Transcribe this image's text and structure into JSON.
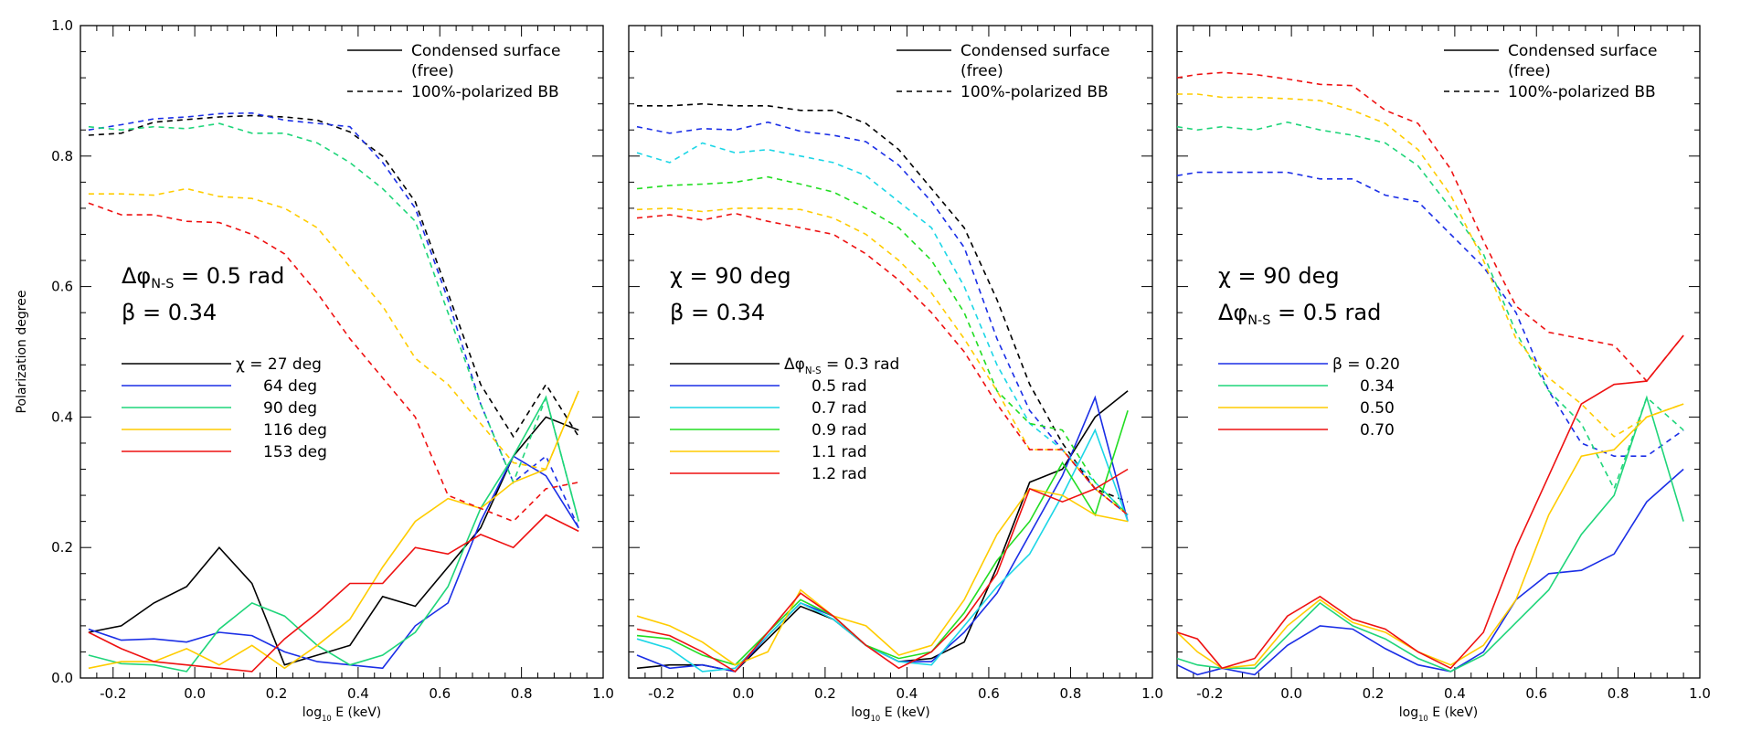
{
  "chart_data": [
    {
      "type": "line",
      "ylabel": "Polarization degree",
      "xlabel_base": "log",
      "xlabel_sub": "10",
      "xlabel_rest": "E (keV)",
      "xlim": [
        -0.28,
        1.0
      ],
      "ylim": [
        0.0,
        1.0
      ],
      "xticks": [
        "-0.2",
        "0.0",
        "0.2",
        "0.4",
        "0.6",
        "0.8",
        "1.0"
      ],
      "yticks": [
        "0.0",
        "0.2",
        "0.4",
        "0.6",
        "0.8",
        "1.0"
      ],
      "style_legend": {
        "solid": "Condensed surface",
        "solid_line2": "(free)",
        "dashed": "100%-polarized BB"
      },
      "params": [
        {
          "sym": "Δφ",
          "sub": "N-S",
          "rest": "=  0.5 rad"
        },
        {
          "sym": "β",
          "sub": "",
          "rest": "=  0.34"
        }
      ],
      "legend_title_sym": "χ",
      "legend_title_sub": "",
      "legend_title_rest": "=",
      "x": [
        -0.26,
        -0.18,
        -0.1,
        -0.02,
        0.06,
        0.14,
        0.22,
        0.3,
        0.38,
        0.46,
        0.54,
        0.62,
        0.7,
        0.78,
        0.86,
        0.94
      ],
      "series": [
        {
          "label": "27 deg",
          "color": "#000000",
          "solid": [
            0.07,
            0.08,
            0.115,
            0.14,
            0.2,
            0.145,
            0.02,
            0.035,
            0.05,
            0.125,
            0.11,
            0.17,
            0.23,
            0.34,
            0.4,
            0.38
          ],
          "dashed": [
            0.832,
            0.835,
            0.852,
            0.856,
            0.86,
            0.862,
            0.86,
            0.855,
            0.837,
            0.8,
            0.73,
            0.59,
            0.45,
            0.37,
            0.45,
            0.37
          ]
        },
        {
          "label": "64 deg",
          "color": "#1a2ee6",
          "solid": [
            0.075,
            0.058,
            0.06,
            0.055,
            0.07,
            0.065,
            0.04,
            0.025,
            0.02,
            0.015,
            0.08,
            0.115,
            0.24,
            0.34,
            0.31,
            0.23
          ],
          "dashed": [
            0.84,
            0.848,
            0.857,
            0.86,
            0.865,
            0.866,
            0.855,
            0.85,
            0.845,
            0.79,
            0.72,
            0.58,
            0.42,
            0.3,
            0.34,
            0.23
          ]
        },
        {
          "label": "90 deg",
          "color": "#1fd57a",
          "solid": [
            0.035,
            0.022,
            0.02,
            0.01,
            0.075,
            0.115,
            0.095,
            0.05,
            0.02,
            0.035,
            0.07,
            0.14,
            0.26,
            0.34,
            0.43,
            0.24
          ],
          "dashed": [
            0.845,
            0.84,
            0.845,
            0.842,
            0.85,
            0.835,
            0.835,
            0.82,
            0.79,
            0.75,
            0.7,
            0.56,
            0.42,
            0.3,
            0.43,
            0.24
          ]
        },
        {
          "label": "116 deg",
          "color": "#ffcc00",
          "solid": [
            0.015,
            0.025,
            0.025,
            0.045,
            0.02,
            0.05,
            0.015,
            0.05,
            0.09,
            0.17,
            0.24,
            0.275,
            0.26,
            0.3,
            0.32,
            0.44
          ],
          "dashed": [
            0.742,
            0.742,
            0.74,
            0.75,
            0.738,
            0.735,
            0.72,
            0.69,
            0.63,
            0.57,
            0.49,
            0.45,
            0.39,
            0.33,
            0.32,
            0.44
          ]
        },
        {
          "label": "153 deg",
          "color": "#ee1111",
          "solid": [
            0.07,
            0.045,
            0.025,
            0.02,
            0.015,
            0.01,
            0.06,
            0.1,
            0.145,
            0.145,
            0.2,
            0.19,
            0.22,
            0.2,
            0.25,
            0.225
          ],
          "dashed": [
            0.728,
            0.71,
            0.71,
            0.7,
            0.698,
            0.68,
            0.65,
            0.59,
            0.52,
            0.46,
            0.4,
            0.28,
            0.26,
            0.24,
            0.29,
            0.3
          ]
        }
      ]
    },
    {
      "type": "line",
      "ylabel": "",
      "xlabel_base": "log",
      "xlabel_sub": "10",
      "xlabel_rest": "E (keV)",
      "xlim": [
        -0.28,
        1.0
      ],
      "ylim": [
        0.0,
        1.0
      ],
      "xticks": [
        "-0.2",
        "0.0",
        "0.2",
        "0.4",
        "0.6",
        "0.8",
        "1.0"
      ],
      "yticks": [],
      "style_legend": {
        "solid": "Condensed surface",
        "solid_line2": "(free)",
        "dashed": "100%-polarized BB"
      },
      "params": [
        {
          "sym": "χ",
          "sub": "",
          "rest": "=    90 deg"
        },
        {
          "sym": "β",
          "sub": "",
          "rest": "=  0.34"
        }
      ],
      "legend_title_sym": "Δφ",
      "legend_title_sub": "N-S",
      "legend_title_rest": "=",
      "x": [
        -0.26,
        -0.18,
        -0.1,
        -0.02,
        0.06,
        0.14,
        0.22,
        0.3,
        0.38,
        0.46,
        0.54,
        0.62,
        0.7,
        0.78,
        0.86,
        0.94
      ],
      "series": [
        {
          "label": "0.3 rad",
          "color": "#000000",
          "solid": [
            0.015,
            0.02,
            0.02,
            0.01,
            0.06,
            0.11,
            0.09,
            0.05,
            0.025,
            0.03,
            0.055,
            0.17,
            0.3,
            0.32,
            0.4,
            0.44
          ],
          "dashed": [
            0.877,
            0.877,
            0.88,
            0.877,
            0.877,
            0.87,
            0.87,
            0.85,
            0.81,
            0.75,
            0.69,
            0.58,
            0.45,
            0.36,
            0.29,
            0.27
          ]
        },
        {
          "label": "0.5 rad",
          "color": "#1a2ee6",
          "solid": [
            0.035,
            0.015,
            0.02,
            0.01,
            0.065,
            0.115,
            0.095,
            0.05,
            0.025,
            0.025,
            0.07,
            0.13,
            0.22,
            0.31,
            0.43,
            0.24
          ],
          "dashed": [
            0.845,
            0.835,
            0.842,
            0.84,
            0.852,
            0.838,
            0.832,
            0.822,
            0.786,
            0.73,
            0.66,
            0.52,
            0.41,
            0.35,
            0.29,
            0.25
          ]
        },
        {
          "label": "0.7 rad",
          "color": "#1cd6e6",
          "solid": [
            0.06,
            0.045,
            0.01,
            0.015,
            0.065,
            0.115,
            0.09,
            0.05,
            0.025,
            0.02,
            0.08,
            0.14,
            0.19,
            0.28,
            0.38,
            0.24
          ],
          "dashed": [
            0.805,
            0.79,
            0.82,
            0.805,
            0.81,
            0.8,
            0.79,
            0.77,
            0.73,
            0.69,
            0.6,
            0.48,
            0.39,
            0.35,
            0.3,
            0.25
          ]
        },
        {
          "label": "0.9 rad",
          "color": "#22dd22",
          "solid": [
            0.065,
            0.06,
            0.035,
            0.02,
            0.07,
            0.12,
            0.095,
            0.05,
            0.03,
            0.04,
            0.1,
            0.18,
            0.24,
            0.33,
            0.25,
            0.41
          ],
          "dashed": [
            0.75,
            0.755,
            0.757,
            0.76,
            0.768,
            0.757,
            0.745,
            0.72,
            0.69,
            0.64,
            0.56,
            0.44,
            0.39,
            0.38,
            0.3,
            0.25
          ]
        },
        {
          "label": "1.1 rad",
          "color": "#ffcc00",
          "solid": [
            0.095,
            0.08,
            0.055,
            0.02,
            0.04,
            0.135,
            0.095,
            0.08,
            0.035,
            0.05,
            0.12,
            0.22,
            0.29,
            0.28,
            0.25,
            0.24
          ],
          "dashed": [
            0.718,
            0.72,
            0.715,
            0.72,
            0.72,
            0.718,
            0.705,
            0.68,
            0.64,
            0.59,
            0.52,
            0.44,
            0.35,
            0.35,
            0.29,
            0.25
          ]
        },
        {
          "label": "1.2 rad",
          "color": "#ee1111",
          "solid": [
            0.075,
            0.065,
            0.04,
            0.01,
            0.07,
            0.13,
            0.095,
            0.05,
            0.015,
            0.04,
            0.09,
            0.16,
            0.29,
            0.27,
            0.29,
            0.32
          ],
          "dashed": [
            0.705,
            0.71,
            0.702,
            0.712,
            0.7,
            0.69,
            0.68,
            0.65,
            0.61,
            0.56,
            0.5,
            0.42,
            0.35,
            0.35,
            0.29,
            0.25
          ]
        }
      ]
    },
    {
      "type": "line",
      "ylabel": "",
      "xlabel_base": "log",
      "xlabel_sub": "10",
      "xlabel_rest": "E (keV)",
      "xlim": [
        -0.28,
        1.0
      ],
      "ylim": [
        0.0,
        1.0
      ],
      "xticks": [
        "-0.2",
        "0.0",
        "0.2",
        "0.4",
        "0.6",
        "0.8",
        "1.0"
      ],
      "yticks": [],
      "style_legend": {
        "solid": "Condensed surface",
        "solid_line2": "(free)",
        "dashed": "100%-polarized BB"
      },
      "params": [
        {
          "sym": "χ",
          "sub": "",
          "rest": "=    90 deg"
        },
        {
          "sym": "Δφ",
          "sub": "N-S",
          "rest": "=  0.5 rad"
        }
      ],
      "legend_title_sym": "β",
      "legend_title_sub": "",
      "legend_title_rest": "=",
      "x": [
        -0.26,
        -0.18,
        -0.1,
        -0.02,
        0.06,
        0.14,
        0.22,
        0.3,
        0.38,
        0.46,
        0.54,
        0.62,
        0.7,
        0.78,
        0.86,
        0.94
      ],
      "series": [
        {
          "label": "0.20",
          "color": "#1a2ee6",
          "solid": [
            0.02,
            0.005,
            0.015,
            0.005,
            0.05,
            0.08,
            0.075,
            0.045,
            0.02,
            0.01,
            0.04,
            0.12,
            0.16,
            0.165,
            0.19,
            0.27,
            0.32
          ],
          "dashed": [
            0.77,
            0.775,
            0.775,
            0.775,
            0.775,
            0.765,
            0.765,
            0.74,
            0.73,
            0.68,
            0.63,
            0.56,
            0.44,
            0.36,
            0.34,
            0.34,
            0.38
          ]
        },
        {
          "label": "0.34",
          "color": "#1fd57a",
          "solid": [
            0.03,
            0.02,
            0.015,
            0.015,
            0.065,
            0.115,
            0.08,
            0.06,
            0.03,
            0.01,
            0.035,
            0.085,
            0.135,
            0.22,
            0.28,
            0.43,
            0.24
          ],
          "dashed": [
            0.845,
            0.84,
            0.845,
            0.84,
            0.852,
            0.84,
            0.832,
            0.82,
            0.785,
            0.72,
            0.65,
            0.53,
            0.44,
            0.39,
            0.29,
            0.43,
            0.38
          ]
        },
        {
          "label": "0.50",
          "color": "#ffcc00",
          "solid": [
            0.07,
            0.04,
            0.015,
            0.02,
            0.08,
            0.12,
            0.085,
            0.07,
            0.04,
            0.02,
            0.05,
            0.12,
            0.25,
            0.34,
            0.35,
            0.4,
            0.42
          ],
          "dashed": [
            0.895,
            0.895,
            0.89,
            0.89,
            0.888,
            0.885,
            0.87,
            0.85,
            0.81,
            0.74,
            0.64,
            0.52,
            0.46,
            0.42,
            0.37,
            0.4,
            0.42
          ]
        },
        {
          "label": "0.70",
          "color": "#ee1111",
          "solid": [
            0.07,
            0.06,
            0.015,
            0.03,
            0.095,
            0.125,
            0.09,
            0.075,
            0.04,
            0.015,
            0.07,
            0.2,
            0.31,
            0.42,
            0.45,
            0.455,
            0.525
          ],
          "dashed": [
            0.92,
            0.925,
            0.928,
            0.925,
            0.918,
            0.91,
            0.908,
            0.87,
            0.85,
            0.78,
            0.67,
            0.57,
            0.53,
            0.52,
            0.51,
            0.455,
            0.525
          ]
        }
      ],
      "x_override": [
        -0.28,
        -0.23,
        -0.17,
        -0.09,
        -0.01,
        0.07,
        0.15,
        0.23,
        0.31,
        0.39,
        0.47,
        0.55,
        0.63,
        0.71,
        0.79,
        0.87,
        0.96
      ]
    }
  ]
}
